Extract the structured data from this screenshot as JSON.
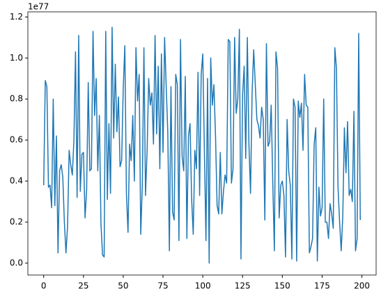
{
  "chart_data": {
    "type": "line",
    "offset_label": "1e77",
    "x": [
      0,
      1,
      2,
      3,
      4,
      5,
      6,
      7,
      8,
      9,
      10,
      11,
      12,
      13,
      14,
      15,
      16,
      17,
      18,
      19,
      20,
      21,
      22,
      23,
      24,
      25,
      26,
      27,
      28,
      29,
      30,
      31,
      32,
      33,
      34,
      35,
      36,
      37,
      38,
      39,
      40,
      41,
      42,
      43,
      44,
      45,
      46,
      47,
      48,
      49,
      50,
      51,
      52,
      53,
      54,
      55,
      56,
      57,
      58,
      59,
      60,
      61,
      62,
      63,
      64,
      65,
      66,
      67,
      68,
      69,
      70,
      71,
      72,
      73,
      74,
      75,
      76,
      77,
      78,
      79,
      80,
      81,
      82,
      83,
      84,
      85,
      86,
      87,
      88,
      89,
      90,
      91,
      92,
      93,
      94,
      95,
      96,
      97,
      98,
      99,
      100,
      101,
      102,
      103,
      104,
      105,
      106,
      107,
      108,
      109,
      110,
      111,
      112,
      113,
      114,
      115,
      116,
      117,
      118,
      119,
      120,
      121,
      122,
      123,
      124,
      125,
      126,
      127,
      128,
      129,
      130,
      131,
      132,
      133,
      134,
      135,
      136,
      137,
      138,
      139,
      140,
      141,
      142,
      143,
      144,
      145,
      146,
      147,
      148,
      149,
      150,
      151,
      152,
      153,
      154,
      155,
      156,
      157,
      158,
      159,
      160,
      161,
      162,
      163,
      164,
      165,
      166,
      167,
      168,
      169,
      170,
      171,
      172,
      173,
      174,
      175,
      176,
      177,
      178,
      179,
      180,
      181,
      182,
      183,
      184,
      185,
      186,
      187,
      188,
      189,
      190,
      191,
      192,
      193,
      194,
      195,
      196,
      197,
      198,
      199
    ],
    "series": [
      {
        "color": "#1f77b4",
        "values": [
          0.38,
          0.89,
          0.86,
          0.37,
          0.38,
          0.27,
          0.8,
          0.28,
          0.62,
          0.05,
          0.45,
          0.48,
          0.42,
          0.2,
          0.05,
          0.18,
          0.55,
          0.48,
          0.43,
          0.6,
          1.03,
          0.32,
          1.11,
          0.35,
          0.53,
          0.54,
          0.22,
          0.36,
          0.88,
          0.45,
          0.46,
          1.13,
          0.72,
          0.9,
          0.45,
          0.72,
          0.19,
          0.04,
          0.03,
          1.13,
          0.31,
          0.68,
          0.34,
          1.15,
          0.61,
          0.97,
          0.64,
          0.81,
          0.47,
          0.5,
          0.85,
          1.06,
          0.34,
          0.15,
          0.58,
          0.5,
          0.72,
          0.4,
          1.05,
          0.79,
          0.92,
          0.14,
          0.38,
          1.05,
          0.33,
          0.55,
          0.9,
          0.77,
          0.83,
          0.58,
          1.11,
          0.63,
          0.96,
          0.46,
          1.02,
          0.54,
          1.1,
          0.86,
          0.64,
          0.06,
          0.86,
          0.25,
          0.21,
          0.92,
          0.87,
          0.11,
          1.09,
          0.52,
          0.45,
          0.91,
          0.12,
          0.62,
          0.68,
          0.31,
          0.14,
          0.55,
          0.46,
          0.93,
          0.33,
          0.92,
          1.02,
          0.55,
          0.11,
          0.9,
          0.0,
          1.0,
          0.77,
          0.87,
          0.62,
          0.28,
          0.24,
          0.54,
          0.24,
          0.35,
          0.43,
          0.39,
          1.09,
          1.08,
          0.39,
          0.46,
          1.1,
          0.73,
          0.8,
          1.14,
          0.02,
          0.82,
          0.96,
          0.51,
          1.1,
          0.58,
          0.34,
          0.83,
          1.04,
          0.87,
          0.7,
          0.67,
          0.61,
          0.76,
          0.7,
          0.21,
          1.07,
          0.57,
          0.59,
          0.77,
          0.39,
          0.06,
          1.03,
          0.95,
          0.22,
          0.38,
          0.4,
          0.33,
          0.03,
          0.7,
          0.45,
          0.38,
          0.02,
          0.8,
          0.76,
          0.01,
          0.79,
          0.71,
          0.78,
          0.55,
          0.92,
          0.77,
          0.76,
          0.05,
          0.08,
          0.12,
          0.58,
          0.66,
          0.01,
          0.37,
          0.23,
          0.27,
          0.8,
          0.2,
          0.2,
          0.12,
          0.29,
          0.24,
          0.17,
          1.05,
          0.95,
          0.37,
          0.2,
          0.06,
          0.23,
          0.66,
          0.44,
          0.69,
          0.33,
          0.36,
          0.3,
          0.74,
          0.06,
          0.12,
          1.12,
          0.21
        ]
      }
    ],
    "xlim": [
      -9.95,
      208.95
    ],
    "xticks": [
      0,
      25,
      50,
      75,
      100,
      125,
      150,
      175,
      200
    ],
    "ylim": [
      -0.058,
      1.225
    ],
    "yticks": [
      {
        "value": 0,
        "label": "0.0"
      },
      {
        "value": 0.2,
        "label": "0.2"
      },
      {
        "value": 0.4,
        "label": "0.4"
      },
      {
        "value": 0.6,
        "label": "0.6"
      },
      {
        "value": 0.8,
        "label": "0.8"
      },
      {
        "value": 1,
        "label": "1.0"
      },
      {
        "value": 1.2,
        "label": "1.2"
      }
    ]
  }
}
